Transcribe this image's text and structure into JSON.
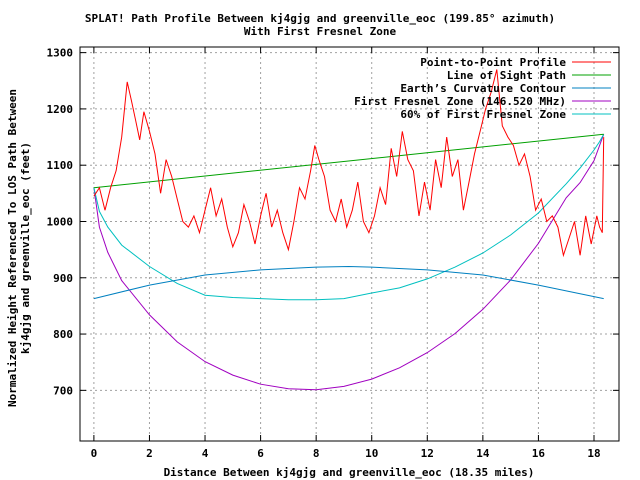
{
  "chart_data": {
    "type": "line",
    "title": "SPLAT! Path Profile Between kj4gjg and greenville_eoc (199.85° azimuth)",
    "subtitle": "With First Fresnel Zone",
    "xlabel": "Distance Between kj4gjg and greenville_eoc (18.35 miles)",
    "ylabel_line1": "Normalized Height Referenced To LOS Path Between",
    "ylabel_line2": "kj4gjg and greenville_eoc (feet)",
    "xlim": [
      -0.5,
      18.9
    ],
    "ylim": [
      610,
      1310
    ],
    "xticks": [
      0,
      2,
      4,
      6,
      8,
      10,
      12,
      14,
      16,
      18
    ],
    "yticks": [
      700,
      800,
      900,
      1000,
      1100,
      1200,
      1300
    ],
    "grid": true,
    "legend_position": "top-right",
    "series": [
      {
        "name": "Point-to-Point Profile",
        "color": "#ff0000",
        "x": [
          0,
          0.2,
          0.4,
          0.6,
          0.8,
          1.0,
          1.1,
          1.2,
          1.35,
          1.5,
          1.65,
          1.8,
          2.0,
          2.2,
          2.4,
          2.6,
          2.8,
          3.0,
          3.2,
          3.4,
          3.6,
          3.8,
          4.0,
          4.2,
          4.4,
          4.6,
          4.8,
          5.0,
          5.2,
          5.4,
          5.6,
          5.8,
          6.0,
          6.2,
          6.4,
          6.6,
          6.8,
          7.0,
          7.2,
          7.4,
          7.6,
          7.8,
          7.95,
          8.1,
          8.3,
          8.5,
          8.7,
          8.9,
          9.1,
          9.3,
          9.5,
          9.7,
          9.9,
          10.1,
          10.3,
          10.5,
          10.7,
          10.9,
          11.1,
          11.3,
          11.5,
          11.7,
          11.9,
          12.1,
          12.3,
          12.5,
          12.7,
          12.9,
          13.1,
          13.3,
          13.5,
          13.7,
          13.9,
          14.1,
          14.3,
          14.5,
          14.7,
          14.9,
          15.1,
          15.3,
          15.5,
          15.7,
          15.9,
          16.1,
          16.3,
          16.5,
          16.7,
          16.9,
          17.1,
          17.3,
          17.5,
          17.7,
          17.9,
          18.1,
          18.2,
          18.3,
          18.35
        ],
        "values": [
          1045,
          1060,
          1020,
          1060,
          1090,
          1150,
          1200,
          1248,
          1215,
          1180,
          1145,
          1195,
          1160,
          1120,
          1050,
          1110,
          1080,
          1040,
          1000,
          990,
          1010,
          980,
          1020,
          1060,
          1010,
          1040,
          990,
          955,
          980,
          1030,
          1000,
          960,
          1010,
          1050,
          990,
          1020,
          980,
          950,
          1000,
          1060,
          1040,
          1090,
          1135,
          1110,
          1080,
          1020,
          1000,
          1040,
          990,
          1020,
          1070,
          1000,
          980,
          1010,
          1060,
          1030,
          1130,
          1080,
          1160,
          1110,
          1090,
          1010,
          1070,
          1020,
          1110,
          1060,
          1150,
          1080,
          1110,
          1020,
          1070,
          1120,
          1160,
          1200,
          1230,
          1270,
          1170,
          1150,
          1135,
          1100,
          1120,
          1080,
          1020,
          1040,
          1000,
          1010,
          990,
          940,
          970,
          1000,
          940,
          1010,
          960,
          1010,
          990,
          980,
          1150
        ]
      },
      {
        "name": "Line of Sight Path",
        "color": "#00a000",
        "x": [
          0,
          18.35
        ],
        "values": [
          1060,
          1155
        ]
      },
      {
        "name": "Earth’s Curvature Contour",
        "color": "#0080c0",
        "x": [
          0,
          2,
          4,
          6,
          8,
          9.175,
          10,
          12,
          14,
          16,
          18.35
        ],
        "values": [
          863,
          887,
          905,
          914,
          919,
          920,
          919,
          914,
          905,
          887,
          863
        ]
      },
      {
        "name": "First Fresnel Zone (146.520 MHz)",
        "color": "#a000c0",
        "x": [
          0,
          0.2,
          0.5,
          1,
          2,
          3,
          4,
          5,
          6,
          7,
          8,
          9,
          10,
          11,
          12,
          13,
          14,
          15,
          16,
          17,
          17.5,
          18,
          18.2,
          18.35
        ],
        "values": [
          1060,
          990,
          945,
          895,
          834,
          786,
          751,
          727,
          711,
          703,
          701,
          707,
          720,
          740,
          767,
          801,
          844,
          896,
          961,
          1042,
          1069,
          1108,
          1135,
          1155
        ]
      },
      {
        "name": "60% of First Fresnel Zone",
        "color": "#00c0c0",
        "x": [
          0,
          0.2,
          0.5,
          1,
          2,
          3,
          4,
          5,
          6,
          7,
          8,
          9,
          10,
          11,
          12,
          13,
          14,
          15,
          16,
          17,
          17.5,
          18,
          18.2,
          18.35
        ],
        "values": [
          1060,
          1018,
          990,
          958,
          920,
          890,
          869,
          865,
          863,
          861,
          861,
          863,
          873,
          882,
          898,
          919,
          944,
          976,
          1015,
          1067,
          1095,
          1127,
          1142,
          1155
        ]
      }
    ]
  }
}
